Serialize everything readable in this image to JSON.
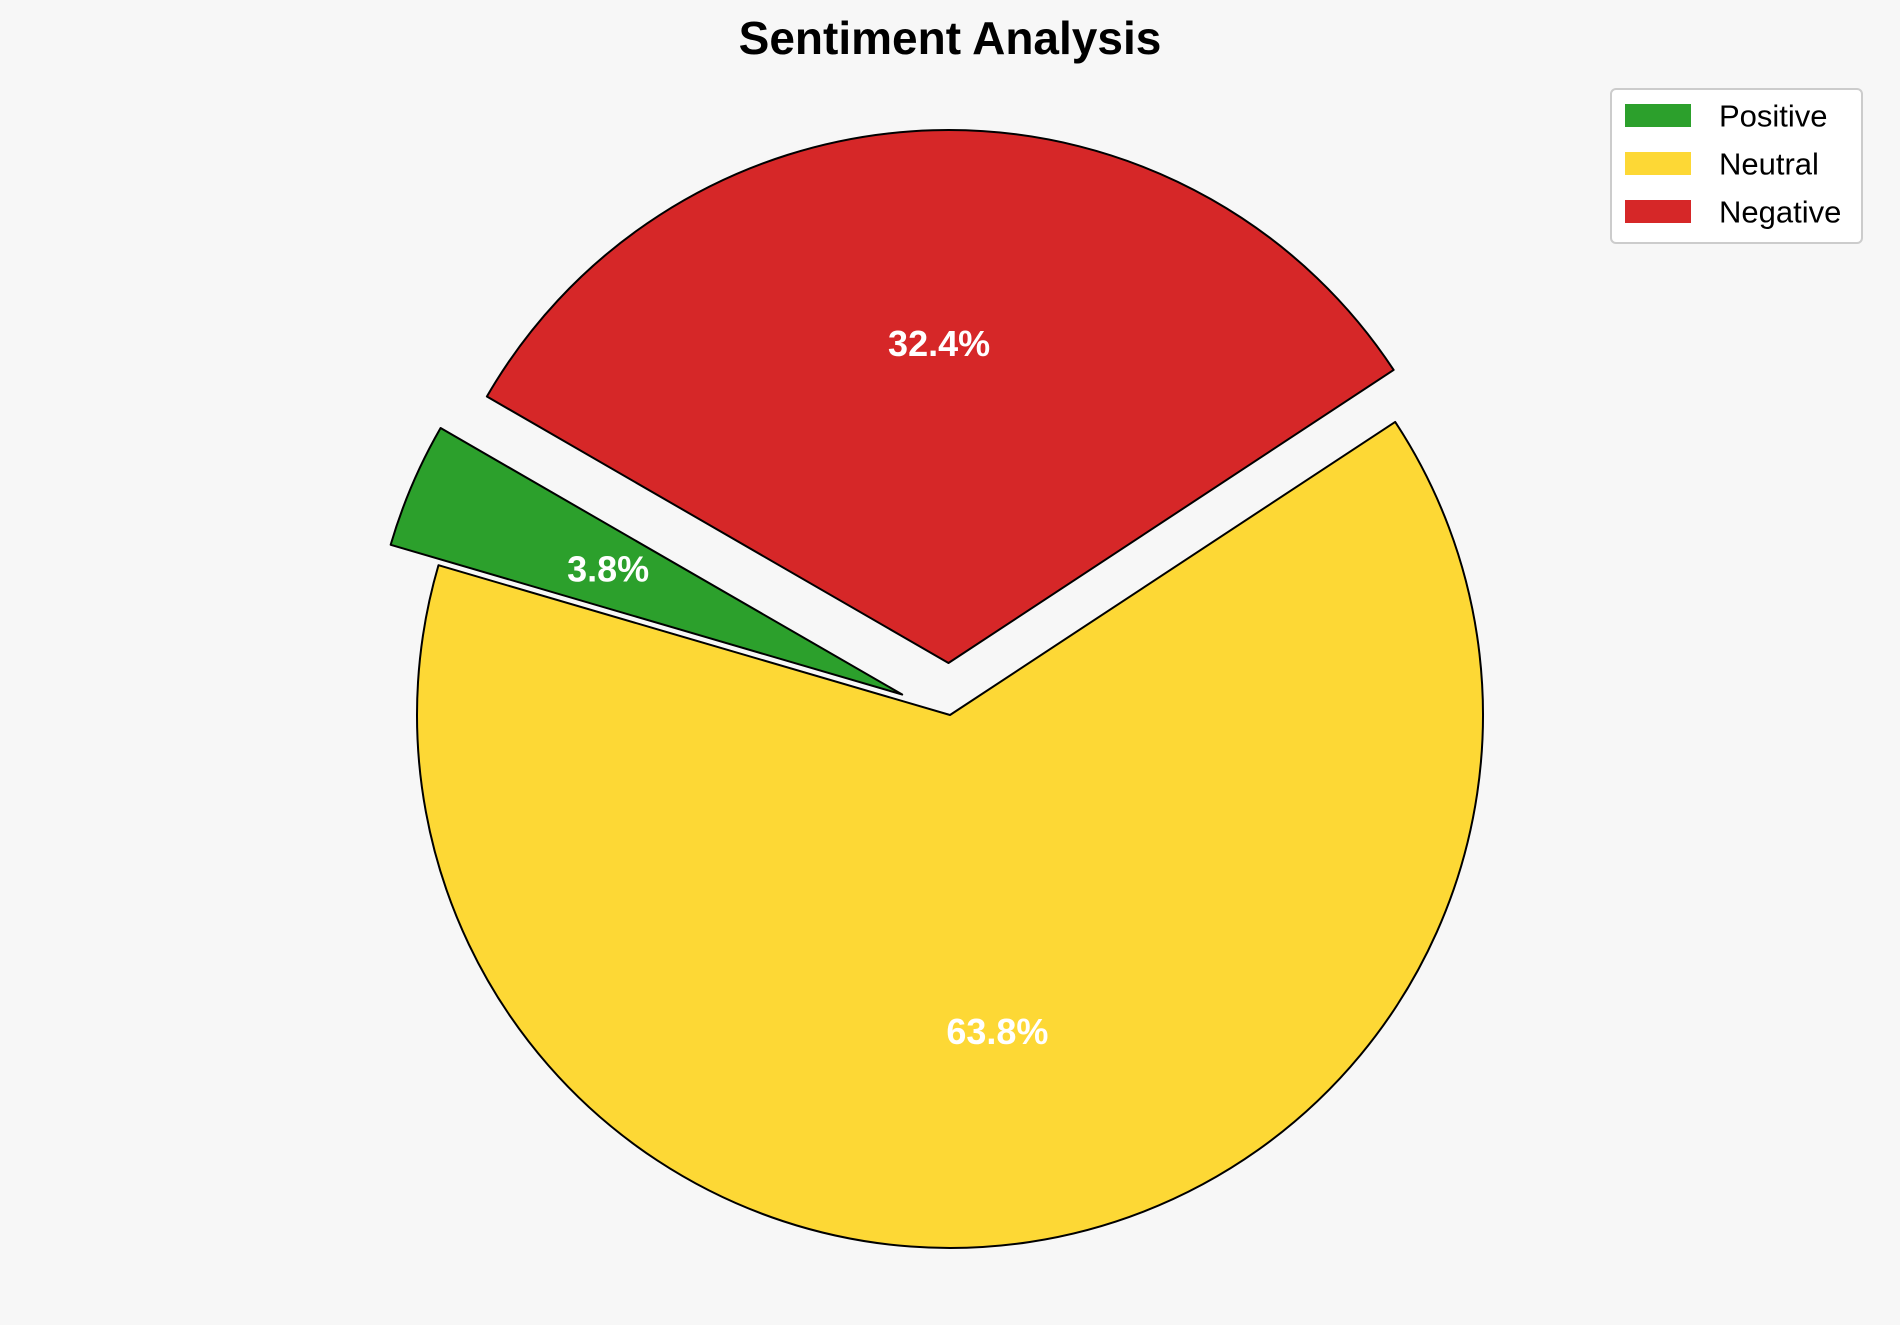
{
  "chart_data": {
    "type": "pie",
    "title": "Sentiment Analysis",
    "categories": [
      "Positive",
      "Neutral",
      "Negative"
    ],
    "values": [
      3.8,
      63.8,
      32.4
    ],
    "labels": [
      "3.8%",
      "63.8%",
      "32.4%"
    ],
    "colors": [
      "#2ca02c",
      "#fdd835",
      "#d62728"
    ],
    "exploded": [
      "Positive",
      "Negative"
    ],
    "legend_position": "top-right"
  }
}
